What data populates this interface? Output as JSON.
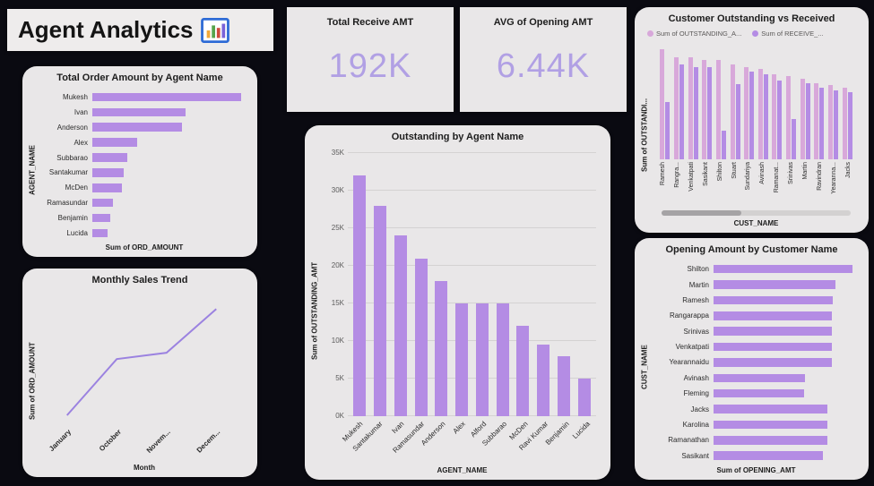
{
  "header": {
    "title": "Agent Analytics",
    "icon": "bar-chart-icon"
  },
  "colors": {
    "background": "#0a0a11",
    "card": "#e9e7e8",
    "bar": "#b48ce4",
    "line": "#9b82e0",
    "kpi_value": "#b1a0e4",
    "series_outstanding": "#d8a8da",
    "series_receive": "#b48ce4"
  },
  "kpis": [
    {
      "label": "Total Receive AMT",
      "value": "192K"
    },
    {
      "label": "AVG of Opening AMT",
      "value": "6.44K"
    }
  ],
  "chart_data": [
    {
      "id": "total-order-by-agent",
      "type": "bar",
      "orientation": "horizontal",
      "title": "Total Order Amount by Agent Name",
      "xlabel": "Sum of ORD_AMOUNT",
      "ylabel": "AGENT_NAME",
      "categories": [
        "Mukesh",
        "Ivan",
        "Anderson",
        "Alex",
        "Subbarao",
        "Santakumar",
        "McDen",
        "Ramasundar",
        "Benjamin",
        "Lucida"
      ],
      "values": [
        8000,
        5000,
        4800,
        2400,
        1900,
        1700,
        1600,
        1100,
        950,
        800
      ]
    },
    {
      "id": "monthly-sales-trend",
      "type": "line",
      "title": "Monthly Sales Trend",
      "xlabel": "Month",
      "ylabel": "Sum of ORD_AMOUNT",
      "categories": [
        "January",
        "October",
        "Novem...",
        "Decem..."
      ],
      "values": [
        600,
        1500,
        1600,
        2300
      ]
    },
    {
      "id": "outstanding-by-agent",
      "type": "bar",
      "orientation": "vertical",
      "title": "Outstanding by Agent Name",
      "xlabel": "AGENT_NAME",
      "ylabel": "Sum of OUTSTANDING_AMT",
      "categories": [
        "Mukesh",
        "Santakumar",
        "Ivan",
        "Ramasundar",
        "Anderson",
        "Alex",
        "Alford",
        "Subbarao",
        "McDen",
        "Ravi Kumar",
        "Benjamin",
        "Lucida"
      ],
      "values": [
        32000,
        28000,
        24000,
        21000,
        18000,
        15000,
        15000,
        15000,
        12000,
        9500,
        8000,
        5000
      ],
      "ylim": [
        0,
        35000
      ],
      "yticks": [
        "0K",
        "5K",
        "10K",
        "15K",
        "20K",
        "25K",
        "30K",
        "35K"
      ],
      "grid": true
    },
    {
      "id": "customer-outstanding-vs-received",
      "type": "bar",
      "orientation": "vertical",
      "grouped": true,
      "title": "Customer Outstanding vs Received",
      "xlabel": "CUST_NAME",
      "ylabel": "Sum of OUTSTANDI...",
      "legend_position": "top",
      "categories": [
        "Ramesh",
        "Rangra...",
        "Venkatpati",
        "Sasikant",
        "Shilton",
        "Stuart",
        "Sundariya",
        "Avinash",
        "Ramanat...",
        "Srinivas",
        "Martin",
        "Ravindran",
        "Yearanna...",
        "Jacks"
      ],
      "ylim": [
        0,
        10000
      ],
      "series": [
        {
          "name": "Sum of OUTSTANDING_A...",
          "color": "#d8a8da",
          "values": [
            9500,
            8800,
            8800,
            8600,
            8600,
            8200,
            8000,
            7800,
            7400,
            7200,
            7000,
            6600,
            6400,
            6200
          ]
        },
        {
          "name": "Sum of RECEIVE_...",
          "color": "#b48ce4",
          "values": [
            5000,
            8200,
            8000,
            8000,
            2500,
            6500,
            7600,
            7400,
            6800,
            3500,
            6600,
            6200,
            6000,
            5800
          ]
        }
      ]
    },
    {
      "id": "opening-by-customer",
      "type": "bar",
      "orientation": "horizontal",
      "title": "Opening Amount by Customer Name",
      "xlabel": "Sum of OPENING_AMT",
      "ylabel": "CUST_NAME",
      "categories": [
        "Shilton",
        "Martin",
        "Ramesh",
        "Rangarappa",
        "Srinivas",
        "Venkatpati",
        "Yearannaidu",
        "Avinash",
        "Fleming",
        "Jacks",
        "Karolina",
        "Ramanathan",
        "Sasikant"
      ],
      "values": [
        10000,
        8800,
        8600,
        8500,
        8500,
        8500,
        8500,
        6600,
        6500,
        8200,
        8200,
        8200,
        7900
      ]
    }
  ]
}
